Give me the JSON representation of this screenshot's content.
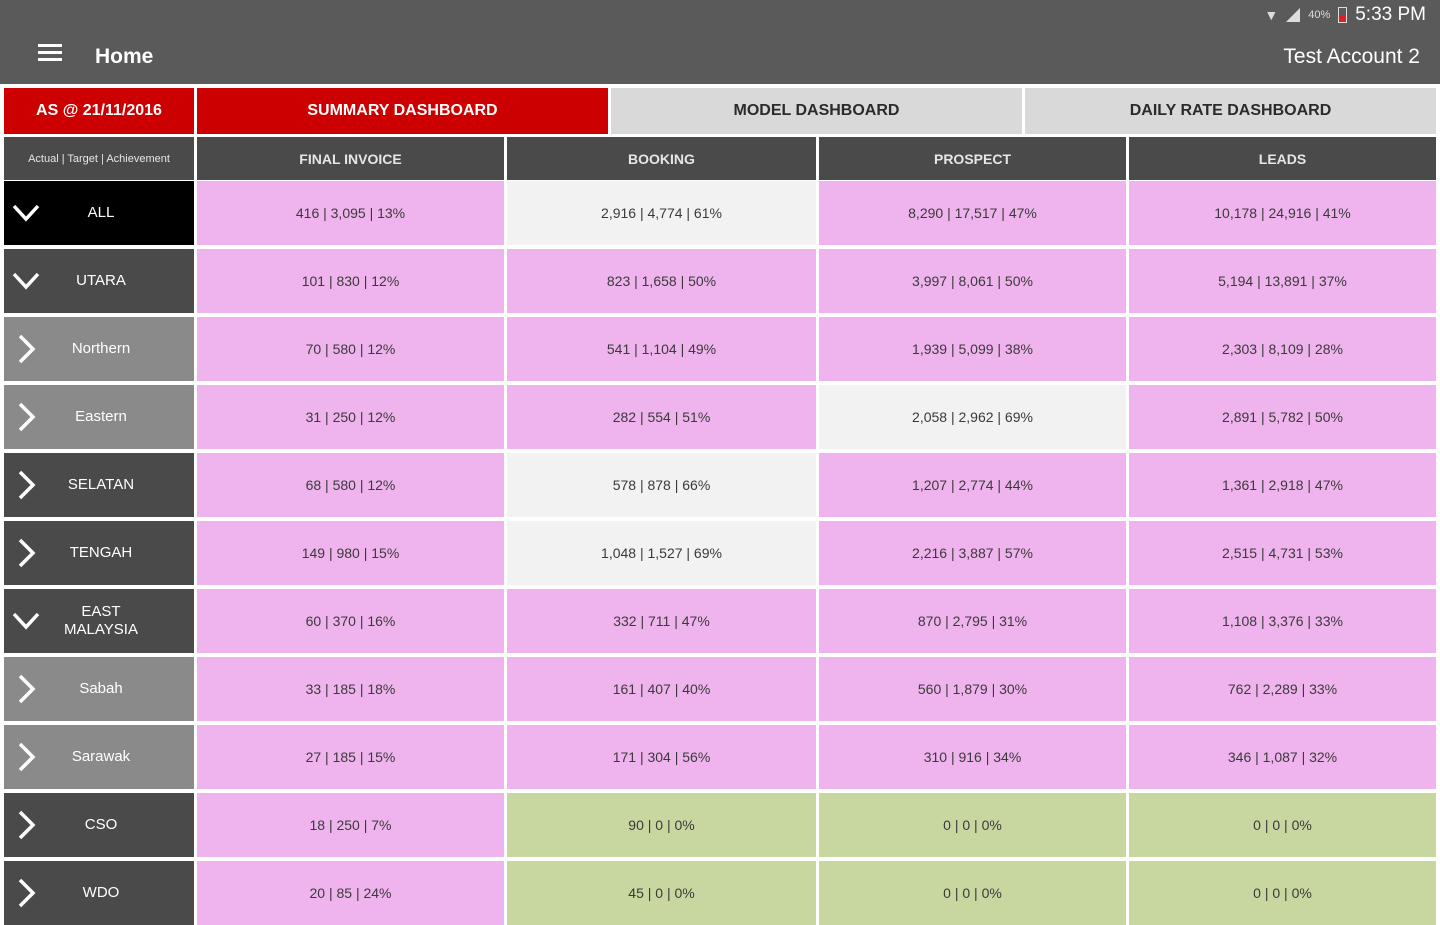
{
  "status_bar": {
    "time": "5:33 PM",
    "battery": "40%"
  },
  "app_bar": {
    "title": "Home",
    "account": "Test Account 2"
  },
  "tabs": {
    "date_label": "AS @ 21/11/2016",
    "items": [
      "SUMMARY DASHBOARD",
      "MODEL DASHBOARD",
      "DAILY RATE DASHBOARD"
    ],
    "active": "SUMMARY DASHBOARD"
  },
  "table": {
    "legend": "Actual | Target | Achievement",
    "columns": [
      "FINAL INVOICE",
      "BOOKING",
      "PROSPECT",
      "LEADS"
    ],
    "colors": {
      "pink": "#efb4ee",
      "white": "#f2f2f2",
      "green": "#c8d7a0",
      "red": "#cc0000"
    },
    "rows": [
      {
        "label": "ALL",
        "level": "top",
        "expanded": true,
        "cells": [
          "416 | 3,095 | 13%",
          "2,916 | 4,774 | 61%",
          "8,290 | 17,517 | 47%",
          "10,178 | 24,916 | 41%"
        ],
        "colors": [
          "pink",
          "white",
          "pink",
          "pink"
        ]
      },
      {
        "label": "UTARA",
        "level": "region",
        "expanded": true,
        "cells": [
          "101 | 830 | 12%",
          "823 | 1,658 | 50%",
          "3,997 | 8,061 | 50%",
          "5,194 | 13,891 | 37%"
        ],
        "colors": [
          "pink",
          "pink",
          "pink",
          "pink"
        ]
      },
      {
        "label": "Northern",
        "level": "sub",
        "expanded": false,
        "cells": [
          "70 | 580 | 12%",
          "541 | 1,104 | 49%",
          "1,939 | 5,099 | 38%",
          "2,303 | 8,109 | 28%"
        ],
        "colors": [
          "pink",
          "pink",
          "pink",
          "pink"
        ]
      },
      {
        "label": "Eastern",
        "level": "sub",
        "expanded": false,
        "cells": [
          "31 | 250 | 12%",
          "282 | 554 | 51%",
          "2,058 | 2,962 | 69%",
          "2,891 | 5,782 | 50%"
        ],
        "colors": [
          "pink",
          "pink",
          "white",
          "pink"
        ]
      },
      {
        "label": "SELATAN",
        "level": "region",
        "expanded": false,
        "cells": [
          "68 | 580 | 12%",
          "578 | 878 | 66%",
          "1,207 | 2,774 | 44%",
          "1,361 | 2,918 | 47%"
        ],
        "colors": [
          "pink",
          "white",
          "pink",
          "pink"
        ]
      },
      {
        "label": "TENGAH",
        "level": "region",
        "expanded": false,
        "cells": [
          "149 | 980 | 15%",
          "1,048 | 1,527 | 69%",
          "2,216 | 3,887 | 57%",
          "2,515 | 4,731 | 53%"
        ],
        "colors": [
          "pink",
          "white",
          "pink",
          "pink"
        ]
      },
      {
        "label": "EAST MALAYSIA",
        "level": "region",
        "expanded": true,
        "cells": [
          "60 | 370 | 16%",
          "332 | 711 | 47%",
          "870 | 2,795 | 31%",
          "1,108 | 3,376 | 33%"
        ],
        "colors": [
          "pink",
          "pink",
          "pink",
          "pink"
        ]
      },
      {
        "label": "Sabah",
        "level": "sub",
        "expanded": false,
        "cells": [
          "33 | 185 | 18%",
          "161 | 407 | 40%",
          "560 | 1,879 | 30%",
          "762 | 2,289 | 33%"
        ],
        "colors": [
          "pink",
          "pink",
          "pink",
          "pink"
        ]
      },
      {
        "label": "Sarawak",
        "level": "sub",
        "expanded": false,
        "cells": [
          "27 | 185 | 15%",
          "171 | 304 | 56%",
          "310 | 916 | 34%",
          "346 | 1,087 | 32%"
        ],
        "colors": [
          "pink",
          "pink",
          "pink",
          "pink"
        ]
      },
      {
        "label": "CSO",
        "level": "region",
        "expanded": false,
        "cells": [
          "18 | 250 | 7%",
          "90 | 0 | 0%",
          "0 | 0 | 0%",
          "0 | 0 | 0%"
        ],
        "colors": [
          "pink",
          "green",
          "green",
          "green"
        ]
      },
      {
        "label": "WDO",
        "level": "region",
        "expanded": false,
        "cells": [
          "20 | 85 | 24%",
          "45 | 0 | 0%",
          "0 | 0 | 0%",
          "0 | 0 | 0%"
        ],
        "colors": [
          "pink",
          "green",
          "green",
          "green"
        ]
      }
    ]
  }
}
